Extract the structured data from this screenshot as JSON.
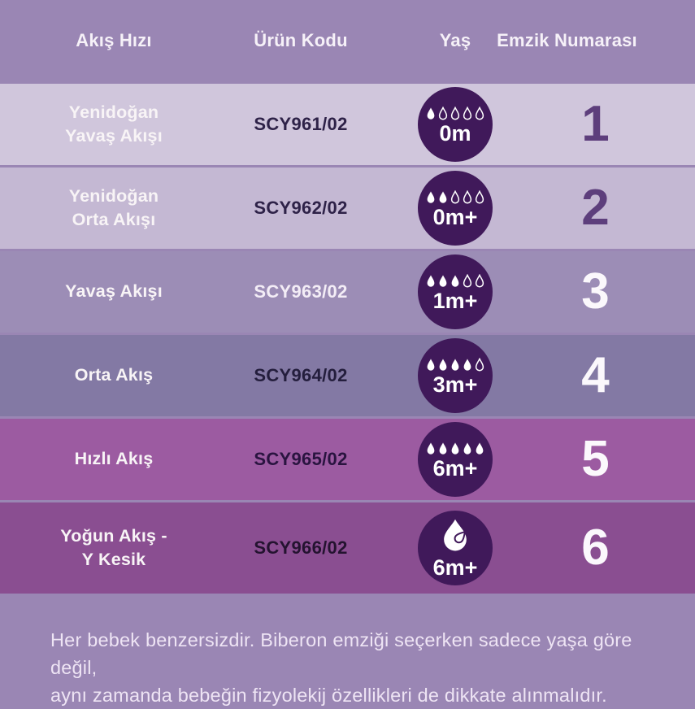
{
  "colors": {
    "page_bg": "#9a86b4",
    "header_text": "#f6f1f8",
    "circle_bg": "#40195a",
    "drop_white": "#ffffff",
    "footer_text": "#eee4f4"
  },
  "header": {
    "col_flow": "Akış Hızı",
    "col_code": "Ürün Kodu",
    "col_age": "Yaş",
    "col_number": "Emzik Numarası"
  },
  "rows": [
    {
      "flow": "Yenidoğan\nYavaş Akışı",
      "code": "SCY961/02",
      "age": "0m",
      "icon": "drops",
      "drops_filled": 1,
      "drops_total": 5,
      "number": "1",
      "bg": "#d0c6dc",
      "flow_color": "#f8f4f6",
      "code_color": "#2e2248",
      "number_color": "#5d3e7c"
    },
    {
      "flow": "Yenidoğan\nOrta Akışı",
      "code": "SCY962/02",
      "age": "0m+",
      "icon": "drops",
      "drops_filled": 2,
      "drops_total": 5,
      "number": "2",
      "bg": "#c4b8d3",
      "flow_color": "#f8f4f6",
      "code_color": "#2e2248",
      "number_color": "#5d3e7c"
    },
    {
      "flow": "Yavaş Akışı",
      "code": "SCY963/02",
      "age": "1m+",
      "icon": "drops",
      "drops_filled": 3,
      "drops_total": 5,
      "number": "3",
      "bg": "#9c8db6",
      "flow_color": "#f8f4f6",
      "code_color": "#f3edf6",
      "number_color": "#fbf8fc"
    },
    {
      "flow": "Orta Akış",
      "code": "SCY964/02",
      "age": "3m+",
      "icon": "drops",
      "drops_filled": 4,
      "drops_total": 5,
      "number": "4",
      "bg": "#8379a4",
      "flow_color": "#f8f4f6",
      "code_color": "#241e3d",
      "number_color": "#fbf8fc"
    },
    {
      "flow": "Hızlı Akış",
      "code": "SCY965/02",
      "age": "6m+",
      "icon": "drops",
      "drops_filled": 5,
      "drops_total": 5,
      "number": "5",
      "bg": "#9c5ba1",
      "flow_color": "#f8f4f6",
      "code_color": "#2a1440",
      "number_color": "#fbf8fc"
    },
    {
      "flow": "Yoğun Akış -\nY Kesik",
      "code": "SCY966/02",
      "age": "6m+",
      "icon": "y-cut",
      "drops_filled": 0,
      "drops_total": 0,
      "number": "6",
      "bg": "#8a4e91",
      "flow_color": "#f8f4f6",
      "code_color": "#241330",
      "number_color": "#fbf8fc"
    }
  ],
  "footer": {
    "text": "Her bebek benzersizdir. Biberon emziği seçerken sadece yaşa göre değil,\naynı zamanda bebeğin fizyolekij özellikleri de dikkate alınmalıdır."
  },
  "chart_data": {
    "type": "table",
    "title": "Emzik akış hızı tablosu",
    "columns": [
      "Akış Hızı",
      "Ürün Kodu",
      "Yaş",
      "Emzik Numarası"
    ],
    "rows": [
      [
        "Yenidoğan Yavaş Akışı",
        "SCY961/02",
        "0m",
        1
      ],
      [
        "Yenidoğan Orta Akışı",
        "SCY962/02",
        "0m+",
        2
      ],
      [
        "Yavaş Akışı",
        "SCY963/02",
        "1m+",
        3
      ],
      [
        "Orta Akış",
        "SCY964/02",
        "3m+",
        4
      ],
      [
        "Hızlı Akış",
        "SCY965/02",
        "6m+",
        5
      ],
      [
        "Yoğun Akış - Y Kesik",
        "SCY966/02",
        "6m+",
        6
      ]
    ],
    "flow_level_icons": {
      "drops_filled_of_5_per_row": [
        1,
        2,
        3,
        4,
        5,
        "y-cut-drop"
      ]
    },
    "note": "Her bebek benzersizdir. Biberon emziği seçerken sadece yaşa göre değil, aynı zamanda bebeğin fizyolekij özellikleri de dikkate alınmalıdır."
  }
}
